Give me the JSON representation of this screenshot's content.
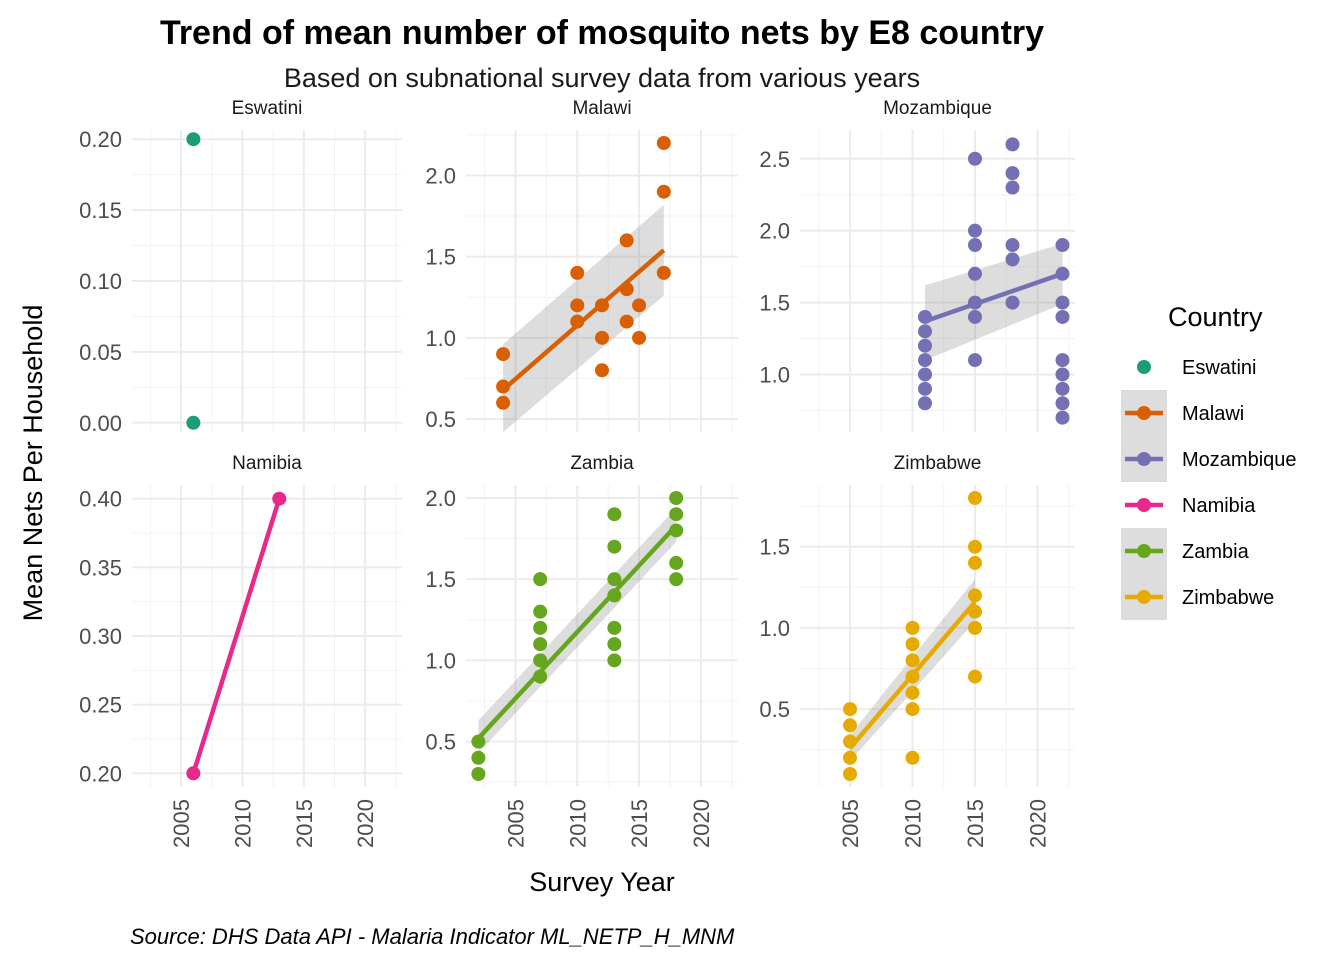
{
  "chart_data": {
    "type": "scatter",
    "title": "Trend of mean number of mosquito nets by E8 country",
    "subtitle": "Based on subnational survey data from various years",
    "xlabel": "Survey Year",
    "ylabel": "Mean Nets Per Household",
    "caption": "Source: DHS Data API - Malaria Indicator ML_NETP_H_MNM",
    "legend": {
      "title": "Country",
      "placement": "right",
      "entries": [
        "Eswatini",
        "Malawi",
        "Mozambique",
        "Namibia",
        "Zambia",
        "Zimbabwe"
      ]
    },
    "x_ticks": [
      "2005",
      "2010",
      "2015",
      "2020"
    ],
    "colors": {
      "Eswatini": "#1b9e77",
      "Malawi": "#d95f02",
      "Mozambique": "#7570b3",
      "Namibia": "#e7298a",
      "Zambia": "#66a61e",
      "Zimbabwe": "#e6ab02"
    },
    "panels": [
      {
        "name": "Eswatini",
        "xlim": [
          2001,
          2023
        ],
        "ylim": [
          -0.0065,
          0.2065
        ],
        "y_ticks": [
          0.0,
          0.05,
          0.1,
          0.15,
          0.2
        ],
        "y_tick_labels": [
          "0.00",
          "0.05",
          "0.10",
          "0.15",
          "0.20"
        ],
        "points": [
          [
            2006,
            0.2
          ],
          [
            2006,
            0.0
          ]
        ],
        "trend": null
      },
      {
        "name": "Malawi",
        "xlim": [
          2001,
          2023
        ],
        "ylim": [
          0.42,
          2.28
        ],
        "y_ticks": [
          0.5,
          1.0,
          1.5,
          2.0
        ],
        "y_tick_labels": [
          "0.5",
          "1.0",
          "1.5",
          "2.0"
        ],
        "points": [
          [
            2004,
            0.9
          ],
          [
            2004,
            0.7
          ],
          [
            2004,
            0.6
          ],
          [
            2010,
            1.4
          ],
          [
            2010,
            1.2
          ],
          [
            2010,
            1.1
          ],
          [
            2012,
            1.2
          ],
          [
            2012,
            1.0
          ],
          [
            2012,
            0.8
          ],
          [
            2014,
            1.6
          ],
          [
            2014,
            1.3
          ],
          [
            2014,
            1.1
          ],
          [
            2015,
            1.2
          ],
          [
            2015,
            1.0
          ],
          [
            2017,
            2.2
          ],
          [
            2017,
            1.9
          ],
          [
            2017,
            1.4
          ]
        ],
        "trend": {
          "x": [
            2004,
            2017
          ],
          "y": [
            0.68,
            1.54
          ],
          "band_lower": [
            0.42,
            1.26
          ],
          "band_upper": [
            0.96,
            1.82
          ]
        }
      },
      {
        "name": "Mozambique",
        "xlim": [
          2001,
          2023
        ],
        "ylim": [
          0.6,
          2.7
        ],
        "y_ticks": [
          1.0,
          1.5,
          2.0,
          2.5
        ],
        "y_tick_labels": [
          "1.0",
          "1.5",
          "2.0",
          "2.5"
        ],
        "points": [
          [
            2011,
            1.4
          ],
          [
            2011,
            1.3
          ],
          [
            2011,
            1.2
          ],
          [
            2011,
            1.1
          ],
          [
            2011,
            1.0
          ],
          [
            2011,
            0.9
          ],
          [
            2011,
            0.8
          ],
          [
            2015,
            2.5
          ],
          [
            2015,
            2.0
          ],
          [
            2015,
            1.9
          ],
          [
            2015,
            1.7
          ],
          [
            2015,
            1.5
          ],
          [
            2015,
            1.4
          ],
          [
            2015,
            1.1
          ],
          [
            2018,
            2.6
          ],
          [
            2018,
            2.4
          ],
          [
            2018,
            2.3
          ],
          [
            2018,
            1.9
          ],
          [
            2018,
            1.8
          ],
          [
            2018,
            1.5
          ],
          [
            2022,
            1.9
          ],
          [
            2022,
            1.7
          ],
          [
            2022,
            1.5
          ],
          [
            2022,
            1.4
          ],
          [
            2022,
            1.1
          ],
          [
            2022,
            1.0
          ],
          [
            2022,
            0.9
          ],
          [
            2022,
            0.8
          ],
          [
            2022,
            0.7
          ]
        ],
        "trend": {
          "x": [
            2011,
            2022
          ],
          "y": [
            1.37,
            1.7
          ],
          "band_lower": [
            1.1,
            1.49
          ],
          "band_upper": [
            1.62,
            1.91
          ]
        }
      },
      {
        "name": "Namibia",
        "xlim": [
          2001,
          2023
        ],
        "ylim": [
          0.19,
          0.41
        ],
        "y_ticks": [
          0.2,
          0.25,
          0.3,
          0.35,
          0.4
        ],
        "y_tick_labels": [
          "0.20",
          "0.25",
          "0.30",
          "0.35",
          "0.40"
        ],
        "points": [
          [
            2006,
            0.2
          ],
          [
            2013,
            0.4
          ]
        ],
        "trend": {
          "x": [
            2006,
            2013
          ],
          "y": [
            0.2,
            0.4
          ],
          "band_lower": null,
          "band_upper": null
        }
      },
      {
        "name": "Zambia",
        "xlim": [
          2001,
          2023
        ],
        "ylim": [
          0.22,
          2.08
        ],
        "y_ticks": [
          0.5,
          1.0,
          1.5,
          2.0
        ],
        "y_tick_labels": [
          "0.5",
          "1.0",
          "1.5",
          "2.0"
        ],
        "points": [
          [
            2002,
            0.5
          ],
          [
            2002,
            0.4
          ],
          [
            2002,
            0.3
          ],
          [
            2007,
            1.5
          ],
          [
            2007,
            1.3
          ],
          [
            2007,
            1.2
          ],
          [
            2007,
            1.1
          ],
          [
            2007,
            1.0
          ],
          [
            2007,
            0.9
          ],
          [
            2013,
            1.9
          ],
          [
            2013,
            1.7
          ],
          [
            2013,
            1.5
          ],
          [
            2013,
            1.4
          ],
          [
            2013,
            1.2
          ],
          [
            2013,
            1.1
          ],
          [
            2013,
            1.0
          ],
          [
            2018,
            2.0
          ],
          [
            2018,
            1.9
          ],
          [
            2018,
            1.8
          ],
          [
            2018,
            1.6
          ],
          [
            2018,
            1.5
          ]
        ],
        "trend": {
          "x": [
            2002,
            2018
          ],
          "y": [
            0.52,
            1.83
          ],
          "band_lower": [
            0.43,
            1.73
          ],
          "band_upper": [
            0.63,
            1.94
          ]
        }
      },
      {
        "name": "Zimbabwe",
        "xlim": [
          2001,
          2023
        ],
        "ylim": [
          0.02,
          1.88
        ],
        "y_ticks": [
          0.5,
          1.0,
          1.5
        ],
        "y_tick_labels": [
          "0.5",
          "1.0",
          "1.5"
        ],
        "points": [
          [
            2005,
            0.5
          ],
          [
            2005,
            0.4
          ],
          [
            2005,
            0.3
          ],
          [
            2005,
            0.2
          ],
          [
            2005,
            0.1
          ],
          [
            2010,
            1.0
          ],
          [
            2010,
            0.9
          ],
          [
            2010,
            0.8
          ],
          [
            2010,
            0.7
          ],
          [
            2010,
            0.6
          ],
          [
            2010,
            0.5
          ],
          [
            2010,
            0.2
          ],
          [
            2015,
            1.8
          ],
          [
            2015,
            1.5
          ],
          [
            2015,
            1.4
          ],
          [
            2015,
            1.2
          ],
          [
            2015,
            1.1
          ],
          [
            2015,
            1.0
          ],
          [
            2015,
            0.7
          ]
        ],
        "trend": {
          "x": [
            2005,
            2015
          ],
          "y": [
            0.26,
            1.16
          ],
          "band_lower": [
            0.18,
            1.04
          ],
          "band_upper": [
            0.34,
            1.3
          ]
        }
      }
    ]
  }
}
